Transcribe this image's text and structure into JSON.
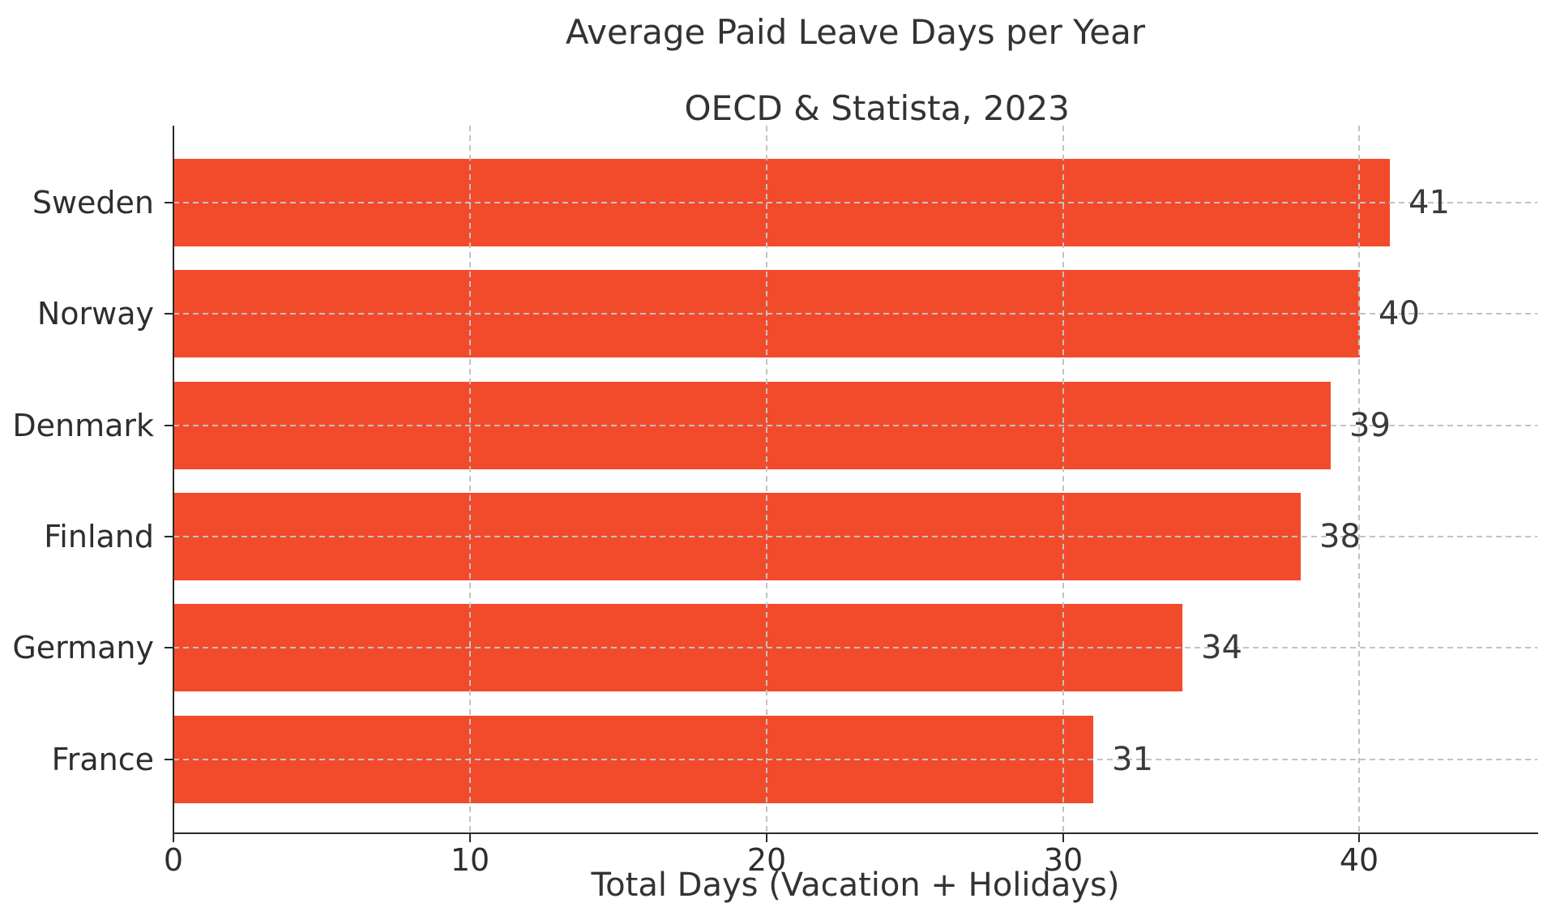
{
  "chart_data": {
    "type": "bar",
    "orientation": "horizontal",
    "title": "Average Paid Leave Days per Year",
    "subtitle": "OECD & Statista, 2023",
    "xlabel": "Total Days (Vacation + Holidays)",
    "categories": [
      "Sweden",
      "Norway",
      "Denmark",
      "Finland",
      "Germany",
      "France"
    ],
    "values": [
      41,
      40,
      39,
      38,
      34,
      31
    ],
    "value_labels": [
      "41",
      "40",
      "39",
      "38",
      "34",
      "31"
    ],
    "xticks": [
      0,
      10,
      20,
      30,
      40
    ],
    "xtick_labels": [
      "0",
      "10",
      "20",
      "30",
      "40"
    ],
    "xlim": [
      0,
      46
    ],
    "grid": "dashed-both-axes-over-bars",
    "legend": "none",
    "colors": {
      "bar": "#F24B2C",
      "text": "#333333",
      "grid": "#c3c3c3",
      "axis": "#2a2a2a"
    }
  }
}
